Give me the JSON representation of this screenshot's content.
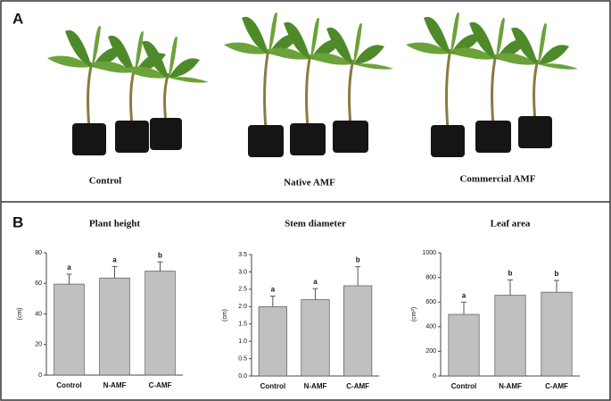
{
  "panel_a": {
    "label": "A",
    "captions": [
      "Control",
      "Native AMF",
      "Commercial AMF"
    ]
  },
  "panel_b": {
    "label": "B"
  },
  "chart_data": [
    {
      "type": "bar",
      "title": "Plant height",
      "y_label": "(cm)",
      "categories": [
        "Control",
        "N-AMF",
        "C-AMF"
      ],
      "values": [
        59.5,
        63.5,
        68
      ],
      "errors": [
        6.5,
        7.5,
        6
      ],
      "letters": [
        "a",
        "a",
        "b"
      ],
      "color": "#c0c0c0",
      "ylim": [
        0,
        80
      ],
      "yticks": [
        0,
        20,
        40,
        60,
        80
      ]
    },
    {
      "type": "bar",
      "title": "Stem diameter",
      "y_label": "(cm)",
      "categories": [
        "Control",
        "N-AMF",
        "C-AMF"
      ],
      "values": [
        2.0,
        2.2,
        2.6
      ],
      "errors": [
        0.3,
        0.32,
        0.55
      ],
      "letters": [
        "a",
        "a",
        "b"
      ],
      "color": "#c0c0c0",
      "ylim": [
        0,
        3.5
      ],
      "yticks": [
        {
          "value": 0,
          "label": "0.0"
        },
        0.5,
        {
          "value": 1,
          "label": "1.0"
        },
        1.5,
        {
          "value": 2,
          "label": "2.0"
        },
        2.5,
        {
          "value": 3,
          "label": "3.0"
        },
        3.5
      ]
    },
    {
      "type": "bar",
      "title": "Leaf area",
      "y_label": "(cm²)",
      "categories": [
        "Control",
        "N-AMF",
        "C-AMF"
      ],
      "values": [
        500,
        655,
        680
      ],
      "errors": [
        100,
        125,
        95
      ],
      "letters": [
        "a",
        "b",
        "b"
      ],
      "color": "#c0c0c0",
      "ylim": [
        0,
        1000
      ],
      "yticks": [
        0,
        200,
        400,
        600,
        800,
        1000
      ]
    }
  ]
}
